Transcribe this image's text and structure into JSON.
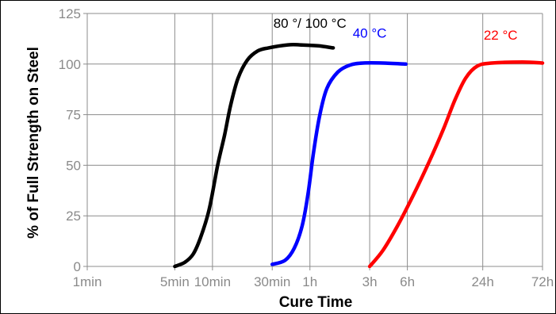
{
  "chart_data": {
    "type": "line",
    "xlabel": "Cure Time",
    "ylabel": "% of Full Strength on Steel",
    "x_scale": "log",
    "x_ticks": [
      {
        "label": "1min",
        "minutes": 1
      },
      {
        "label": "5min",
        "minutes": 5
      },
      {
        "label": "10min",
        "minutes": 10
      },
      {
        "label": "30min",
        "minutes": 30
      },
      {
        "label": "1h",
        "minutes": 60
      },
      {
        "label": "3h",
        "minutes": 180
      },
      {
        "label": "6h",
        "minutes": 360
      },
      {
        "label": "24h",
        "minutes": 1440
      },
      {
        "label": "72h",
        "minutes": 4320
      }
    ],
    "y_ticks": [
      0,
      25,
      50,
      75,
      100,
      125
    ],
    "xlim_minutes": [
      1,
      4320
    ],
    "ylim": [
      0,
      125
    ],
    "grid": true,
    "x_unit": "minutes",
    "series": [
      {
        "name": "80 °/ 100 °C",
        "color": "#000000",
        "points": [
          [
            5,
            0
          ],
          [
            6,
            2
          ],
          [
            7,
            6
          ],
          [
            8,
            14
          ],
          [
            9.4,
            28
          ],
          [
            11,
            50
          ],
          [
            12.5,
            65
          ],
          [
            14,
            80
          ],
          [
            16,
            93
          ],
          [
            19,
            102
          ],
          [
            23,
            106.5
          ],
          [
            28,
            108
          ],
          [
            40,
            109.5
          ],
          [
            50,
            109.5
          ],
          [
            70,
            109
          ],
          [
            92,
            108
          ]
        ]
      },
      {
        "name": "40 °C",
        "color": "#0000ff",
        "points": [
          [
            30,
            1
          ],
          [
            38,
            3
          ],
          [
            45,
            9
          ],
          [
            52,
            20
          ],
          [
            58,
            36
          ],
          [
            64,
            56
          ],
          [
            72,
            75
          ],
          [
            82,
            88
          ],
          [
            100,
            96
          ],
          [
            125,
            99.5
          ],
          [
            160,
            100.5
          ],
          [
            230,
            100.5
          ],
          [
            350,
            100
          ]
        ]
      },
      {
        "name": "22 °C",
        "color": "#ff0000",
        "points": [
          [
            180,
            0
          ],
          [
            230,
            8
          ],
          [
            300,
            20
          ],
          [
            400,
            35
          ],
          [
            540,
            52
          ],
          [
            700,
            68
          ],
          [
            860,
            82
          ],
          [
            1050,
            93
          ],
          [
            1300,
            99
          ],
          [
            1700,
            100.5
          ],
          [
            3000,
            101
          ],
          [
            4320,
            100.5
          ]
        ]
      }
    ]
  }
}
